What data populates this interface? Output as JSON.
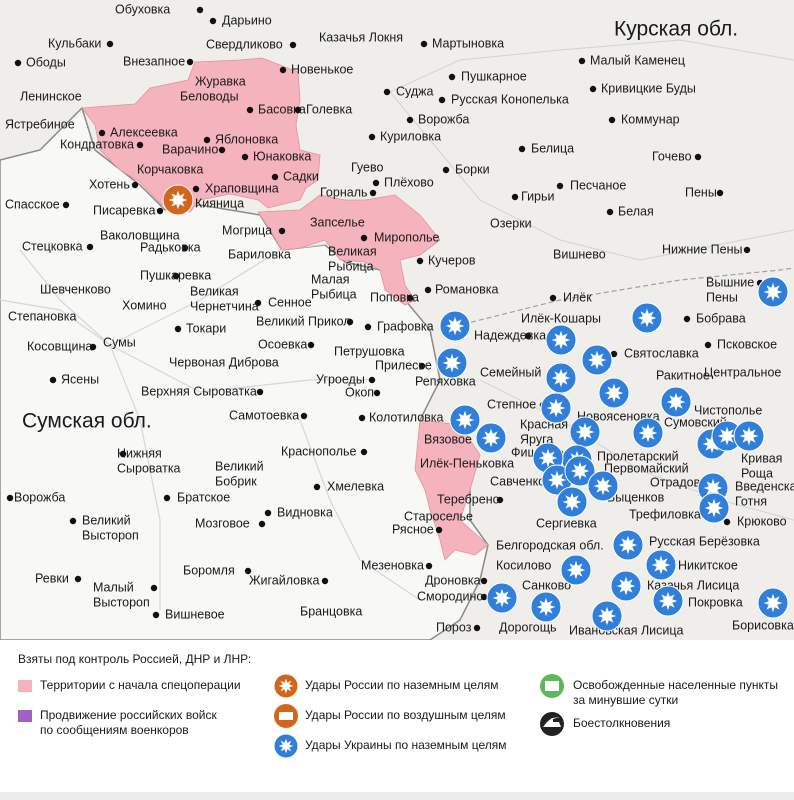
{
  "map": {
    "regions": [
      "Курская обл.",
      "Сумская обл."
    ],
    "places": [
      "Обуховка",
      "Дарьино",
      "Кульбаки",
      "Свердликово",
      "Казачья Локня",
      "Мартыновка",
      "Ободы",
      "Внезапное",
      "Новенькое",
      "Малый Каменец",
      "Пушкарное",
      "Журавка",
      "Кривицкие Буды",
      "Ленинское",
      "Беловоды",
      "Суджа",
      "Русская Конопелька",
      "Ястребиное",
      "Басовка",
      "Голевка",
      "Ворожба",
      "Коммунар",
      "Алексеевка",
      "Кондратовка",
      "Яблоновка",
      "Куриловка",
      "Варачино",
      "Белица",
      "Гочево",
      "Юнаковка",
      "Корчаковка",
      "Гуево",
      "Борки",
      "Садки",
      "Хотень",
      "Храповщина",
      "Плёхово",
      "Песчаное",
      "Пены",
      "Горналь",
      "Гирьи",
      "Спасское",
      "Писаревка",
      "Кияница",
      "Белая",
      "Запселье",
      "Озерки",
      "Могрица",
      "Миропольe",
      "Ваколовщина",
      "Радьковка",
      "Стецковка",
      [
        "Великая",
        "Рыбица"
      ],
      "Бариловка",
      "Вишнево",
      "Нижние Пены",
      "Кучеров",
      "Пушкаревка",
      [
        "Малая",
        "Рыбица"
      ],
      "Шевченково",
      [
        "Великая",
        "Чернетчина"
      ],
      "Романовка",
      "Илёк",
      [
        "Вышние",
        "Пены"
      ],
      "Степановка",
      "Хомино",
      "Сенное",
      "Поповка",
      "Илёк-Кошары",
      "Бобрава",
      "Великий Прикол",
      "Графовка",
      "Надеждевка",
      "Токари",
      "Косовщина",
      "Сумы",
      "Осоевка",
      "Петрушовка",
      "Святославка",
      "Псковское",
      "Червоная Диброва",
      "Прилесье",
      "Семейный",
      "Ракитное",
      "Центральное",
      "Ясены",
      "Угроеды",
      "Репяховка",
      "Верхняя Сыроватка",
      "Окоп",
      "Степное",
      "Новоясеновка",
      "Чистополье",
      "Самотоевка",
      "Колотиловка",
      "Сумовский",
      [
        "Красная",
        "Яруга"
      ],
      "Вязовое",
      [
        "Нижняя",
        "Сыроватка"
      ],
      "Краснополье",
      "Фищево",
      "Пролетарский",
      [
        "Кривая",
        "Роща"
      ],
      "Первомайский",
      [
        "Великий",
        "Бобрик"
      ],
      "Илёк-Пеньковка",
      "Отрадовский",
      [
        "Введенская",
        "Готня"
      ],
      "Савченко",
      "Хмелевка",
      "Ворожба",
      "Братское",
      "Теребрено",
      "Быценков",
      "Трефиловка",
      [
        "Великий",
        "Выстороп"
      ],
      "Видновка",
      "Староселье",
      "Сергиевка",
      "Крюково",
      "Мозговое",
      "Рясное",
      "Русская Берёзовка",
      "Белгородская обл.",
      "Никитское",
      "Мезеновка",
      "Косилово",
      "Ревки",
      "Боромля",
      "Жигайловка",
      [
        "Малый",
        "Выстороп"
      ],
      "Дроновка",
      "Санково",
      "Казачья Лисица",
      "Смородино",
      "Покровка",
      "Вишневое",
      "Бранцовка",
      "Борисовка",
      "Пороз",
      "Дорогощь",
      "Ивановская Лисица"
    ]
  },
  "legend": {
    "title": "Взяты под контроль Россией, ДНР и ЛНР:",
    "items": [
      "Территории с начала спецоперации",
      [
        "Продвижение российских войск",
        "по сообщениям военкоров"
      ],
      "Удары России по наземным целям",
      "Удары России по воздушным целям",
      "Удары Украины по наземным целям",
      [
        "Освобожденные населенные пункты",
        "за минувшие сутки"
      ],
      "Боестолкновения"
    ]
  }
}
